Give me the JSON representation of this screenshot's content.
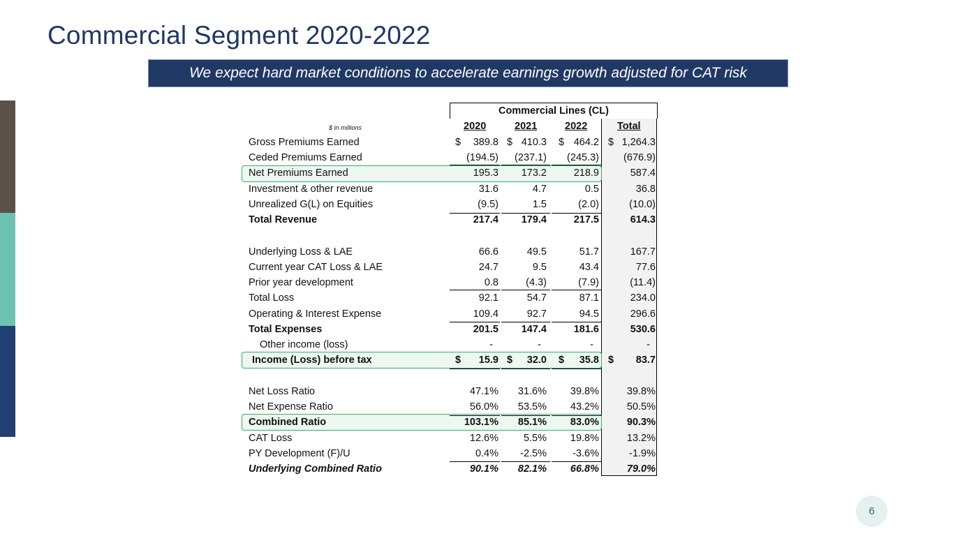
{
  "title": "Commercial Segment 2020-2022",
  "subtitle": "We expect hard market conditions to accelerate earnings growth adjusted for CAT risk",
  "page_number": "6",
  "accent_colors": {
    "title": "#1f3864",
    "banner": "#203864",
    "bar_top": "#5b5149",
    "bar_middle": "#6cc3b0",
    "bar_bottom": "#213f72",
    "highlight": "#36b060"
  },
  "table": {
    "group_header": "Commercial Lines (CL)",
    "units_note": "$ in millions",
    "columns": [
      "2020",
      "2021",
      "2022",
      "Total"
    ],
    "rows": [
      {
        "label": "Gross Premiums Earned",
        "values": [
          "389.8",
          "410.3",
          "464.2",
          "1,264.3"
        ],
        "dollar": true
      },
      {
        "label": "Ceded Premiums Earned",
        "values": [
          "(194.5)",
          "(237.1)",
          "(245.3)",
          "(676.9)"
        ]
      },
      {
        "label": "Net Premiums Earned",
        "values": [
          "195.3",
          "173.2",
          "218.9",
          "587.4"
        ]
      },
      {
        "label": "Investment & other revenue",
        "values": [
          "31.6",
          "4.7",
          "0.5",
          "36.8"
        ]
      },
      {
        "label": "Unrealized G(L) on Equities",
        "values": [
          "(9.5)",
          "1.5",
          "(2.0)",
          "(10.0)"
        ]
      },
      {
        "label": "Total Revenue",
        "values": [
          "217.4",
          "179.4",
          "217.5",
          "614.3"
        ],
        "bold": true
      },
      {
        "label": "Underlying Loss & LAE",
        "values": [
          "66.6",
          "49.5",
          "51.7",
          "167.7"
        ]
      },
      {
        "label": "Current year CAT Loss & LAE",
        "values": [
          "24.7",
          "9.5",
          "43.4",
          "77.6"
        ]
      },
      {
        "label": "Prior year development",
        "values": [
          "0.8",
          "(4.3)",
          "(7.9)",
          "(11.4)"
        ]
      },
      {
        "label": "Total Loss",
        "values": [
          "92.1",
          "54.7",
          "87.1",
          "234.0"
        ]
      },
      {
        "label": "Operating & Interest Expense",
        "values": [
          "109.4",
          "92.7",
          "94.5",
          "296.6"
        ]
      },
      {
        "label": "Total Expenses",
        "values": [
          "201.5",
          "147.4",
          "181.6",
          "530.6"
        ],
        "bold": true
      },
      {
        "label": "Other income (loss)",
        "values": [
          "-",
          "-",
          "-",
          "-"
        ]
      },
      {
        "label": "Income (Loss) before tax",
        "values": [
          "15.9",
          "32.0",
          "35.8",
          "83.7"
        ],
        "bold": true,
        "dollar": true
      },
      {
        "label": "Net Loss Ratio",
        "values": [
          "47.1%",
          "31.6%",
          "39.8%",
          "39.8%"
        ]
      },
      {
        "label": "Net Expense Ratio",
        "values": [
          "56.0%",
          "53.5%",
          "43.2%",
          "50.5%"
        ]
      },
      {
        "label": "Combined Ratio",
        "values": [
          "103.1%",
          "85.1%",
          "83.0%",
          "90.3%"
        ],
        "bold": true
      },
      {
        "label": "CAT Loss",
        "values": [
          "12.6%",
          "5.5%",
          "19.8%",
          "13.2%"
        ]
      },
      {
        "label": "PY Development (F)/U",
        "values": [
          "0.4%",
          "-2.5%",
          "-3.6%",
          "-1.9%"
        ]
      },
      {
        "label": "Underlying Combined Ratio",
        "values": [
          "90.1%",
          "82.1%",
          "66.8%",
          "79.0%"
        ],
        "bold": true,
        "italic": true
      }
    ],
    "currency_symbol": "$"
  }
}
